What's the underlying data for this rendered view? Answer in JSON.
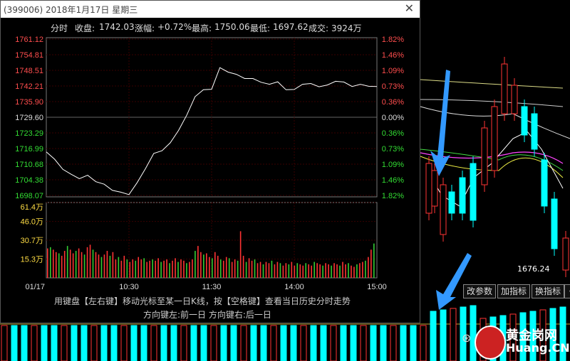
{
  "window": {
    "title": "(399006) 2018年1月17日 星期三",
    "close_glyph": "✕"
  },
  "info_bar": {
    "mode": "分时",
    "close_label": "收盘:",
    "close_value": "1742.03",
    "change_label": "涨幅:",
    "change_value": "+0.72%",
    "high_label": "最高:",
    "high_value": "1750.06",
    "low_label": "最低:",
    "low_value": "1697.62",
    "volume_label": "成交:",
    "volume_value": "3924万"
  },
  "hint": {
    "line1": "用键盘【左右键】移动光标至某一日K线，按【空格键】查看当日历史分时走势",
    "line2": "方向键左:前一日    方向键右:后一日"
  },
  "buttons": [
    "改参数",
    "加指标",
    "换指标",
    "《"
  ],
  "kline_label": "1676.24",
  "watermark": {
    "cn": "黄金岗网",
    "en": "Huang.CN",
    "wechat": "⊛"
  },
  "colors": {
    "up": "#ff3333",
    "down": "#00ffff",
    "price_line": "#ffffff",
    "grid": "#3a0000",
    "axis_red": "#ff4d4d",
    "axis_green": "#33dd33"
  },
  "chart_data": [
    {
      "type": "line",
      "title": "分时",
      "x_ticks": [
        "01/17",
        "10:30",
        "11:30",
        "14:00",
        "15:00"
      ],
      "y_ticks_left": [
        "1761.12",
        "1754.81",
        "1748.51",
        "1742.21",
        "1735.90",
        "1729.60",
        "1723.29",
        "1716.99",
        "1710.68",
        "1704.38",
        "1698.07"
      ],
      "y_ticks_right": [
        "1.82%",
        "1.46%",
        "1.09%",
        "0.73%",
        "0.36%",
        "0.00%",
        "0.36%",
        "0.73%",
        "1.09%",
        "1.46%",
        "1.82%"
      ],
      "ylim": [
        1698.07,
        1761.12
      ],
      "prev_close": 1729.6,
      "price": [
        1715.6,
        1712.7,
        1708.6,
        1706.6,
        1704.8,
        1706.2,
        1703.6,
        1702.6,
        1700.1,
        1699.4,
        1698.4,
        1703.3,
        1708.9,
        1715.0,
        1716.1,
        1719.3,
        1724.3,
        1730.5,
        1737.9,
        1740.7,
        1740.9,
        1749.6,
        1747.8,
        1746.9,
        1745.2,
        1745.2,
        1743.7,
        1742.9,
        1743.9,
        1740.7,
        1740.8,
        1742.9,
        1743.2,
        1741.9,
        1742.6,
        1744.1,
        1743.8,
        1742.0,
        1742.9,
        1742.1,
        1742.0
      ]
    },
    {
      "type": "bar",
      "title": "成交量",
      "y_ticks": [
        "61.4万",
        "46.0万",
        "30.7万",
        "15.3万"
      ],
      "ylim": [
        0,
        61.4
      ],
      "unit": "万",
      "values": [
        24,
        25,
        23,
        21,
        20,
        18,
        22,
        26,
        23,
        20,
        22,
        24,
        21,
        19,
        25,
        27,
        23,
        21,
        19,
        17,
        19,
        22,
        18,
        21,
        15,
        17,
        14,
        18,
        15,
        13,
        15,
        14,
        17,
        15,
        16,
        13,
        14,
        15,
        14,
        16,
        13,
        14,
        15,
        12,
        14,
        16,
        13,
        15,
        14,
        12,
        13,
        15,
        22,
        26,
        21,
        19,
        20,
        17,
        16,
        21,
        18,
        15,
        14,
        17,
        16,
        13,
        15,
        14,
        38,
        18,
        13,
        16,
        14,
        15,
        12,
        13,
        11,
        13,
        12,
        14,
        11,
        13,
        12,
        10,
        12,
        11,
        13,
        10,
        12,
        11,
        10,
        12,
        11,
        10,
        13,
        12,
        11,
        10,
        12,
        11,
        10,
        12,
        11,
        10,
        13,
        11,
        12,
        10,
        9,
        11,
        12,
        13,
        14,
        17,
        23,
        28
      ]
    }
  ]
}
